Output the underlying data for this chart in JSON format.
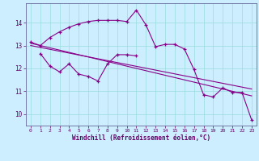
{
  "background_color": "#cceeff",
  "grid_color": "#99dddd",
  "line_color": "#880088",
  "xlabel": "Windchill (Refroidissement éolien,°C)",
  "xlim": [
    -0.5,
    23.5
  ],
  "ylim": [
    9.5,
    14.85
  ],
  "yticks": [
    10,
    11,
    12,
    13,
    14
  ],
  "xticks": [
    0,
    1,
    2,
    3,
    4,
    5,
    6,
    7,
    8,
    9,
    10,
    11,
    12,
    13,
    14,
    15,
    16,
    17,
    18,
    19,
    20,
    21,
    22,
    23
  ],
  "series1_x": [
    0,
    1,
    2,
    3,
    4,
    5,
    6,
    7,
    8,
    9,
    10,
    11,
    12,
    13,
    14,
    15,
    16,
    17,
    18,
    19,
    20,
    21,
    22,
    23
  ],
  "series1_y": [
    13.15,
    13.0,
    13.35,
    13.6,
    13.8,
    13.95,
    14.05,
    14.1,
    14.1,
    14.1,
    14.05,
    14.55,
    13.9,
    12.95,
    13.05,
    13.05,
    12.85,
    11.95,
    10.85,
    10.75,
    11.15,
    10.95,
    10.95,
    9.75
  ],
  "series2_x": [
    1,
    2,
    3,
    4,
    5,
    6,
    7,
    8,
    9,
    10,
    11
  ],
  "series2_y": [
    12.65,
    12.1,
    11.85,
    12.2,
    11.75,
    11.65,
    11.45,
    12.2,
    12.6,
    12.6,
    12.55
  ],
  "series3_x": [
    0,
    23
  ],
  "series3_y": [
    13.1,
    10.8
  ],
  "series4_x": [
    0,
    23
  ],
  "series4_y": [
    13.0,
    11.1
  ]
}
